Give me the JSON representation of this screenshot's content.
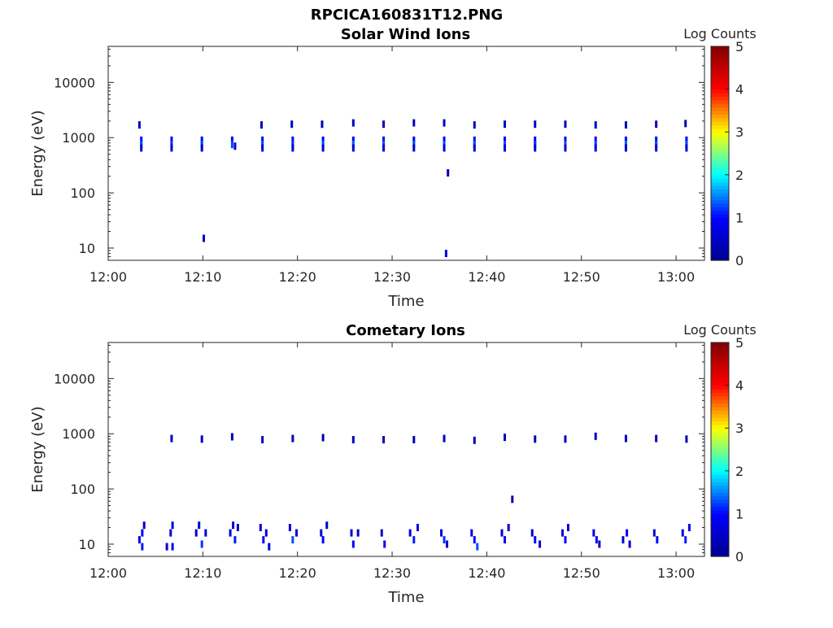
{
  "figure": {
    "title": "RPCICA160831T12.PNG"
  },
  "colormap": {
    "name": "jet",
    "stops": [
      "#00008f",
      "#0000ff",
      "#00ffff",
      "#ffff00",
      "#ff0000",
      "#800000"
    ]
  },
  "chart_data": [
    {
      "type": "heatmap",
      "title": "Solar Wind Ions",
      "xlabel": "Time",
      "ylabel": "Energy (eV)",
      "x_ticks": [
        "12:00",
        "12:10",
        "12:20",
        "12:30",
        "12:40",
        "12:50",
        "13:00"
      ],
      "x_range_minutes": [
        0,
        63
      ],
      "y_scale": "log",
      "y_ticks": [
        "10",
        "100",
        "1000",
        "10000"
      ],
      "y_range": [
        6,
        45000
      ],
      "colorbar": {
        "label": "Log Counts",
        "ticks": [
          "0",
          "1",
          "2",
          "3",
          "4",
          "5"
        ],
        "range": [
          0,
          5
        ]
      },
      "grid": false,
      "cells": [
        {
          "t": 3.3,
          "e": 1700,
          "v": 0.4
        },
        {
          "t": 3.5,
          "e": 900,
          "v": 1.0
        },
        {
          "t": 3.5,
          "e": 750,
          "v": 1.3
        },
        {
          "t": 3.5,
          "e": 650,
          "v": 0.6
        },
        {
          "t": 6.7,
          "e": 900,
          "v": 0.9
        },
        {
          "t": 6.7,
          "e": 750,
          "v": 1.2
        },
        {
          "t": 6.7,
          "e": 650,
          "v": 0.6
        },
        {
          "t": 9.9,
          "e": 900,
          "v": 0.9
        },
        {
          "t": 9.9,
          "e": 750,
          "v": 1.3
        },
        {
          "t": 9.9,
          "e": 650,
          "v": 0.5
        },
        {
          "t": 10.1,
          "e": 15,
          "v": 0.5
        },
        {
          "t": 13.1,
          "e": 900,
          "v": 0.9
        },
        {
          "t": 13.1,
          "e": 750,
          "v": 1.3
        },
        {
          "t": 13.4,
          "e": 700,
          "v": 0.6
        },
        {
          "t": 16.2,
          "e": 1700,
          "v": 0.4
        },
        {
          "t": 16.3,
          "e": 900,
          "v": 0.9
        },
        {
          "t": 16.3,
          "e": 750,
          "v": 1.3
        },
        {
          "t": 16.3,
          "e": 650,
          "v": 0.6
        },
        {
          "t": 19.4,
          "e": 1750,
          "v": 0.5
        },
        {
          "t": 19.5,
          "e": 900,
          "v": 0.9
        },
        {
          "t": 19.5,
          "e": 750,
          "v": 1.2
        },
        {
          "t": 19.5,
          "e": 650,
          "v": 0.6
        },
        {
          "t": 22.6,
          "e": 1750,
          "v": 0.4
        },
        {
          "t": 22.7,
          "e": 900,
          "v": 0.9
        },
        {
          "t": 22.7,
          "e": 750,
          "v": 1.3
        },
        {
          "t": 22.7,
          "e": 650,
          "v": 0.6
        },
        {
          "t": 25.9,
          "e": 1850,
          "v": 0.5
        },
        {
          "t": 25.9,
          "e": 900,
          "v": 1.0
        },
        {
          "t": 25.9,
          "e": 750,
          "v": 1.4
        },
        {
          "t": 25.9,
          "e": 650,
          "v": 0.6
        },
        {
          "t": 29.1,
          "e": 1750,
          "v": 0.4
        },
        {
          "t": 29.1,
          "e": 900,
          "v": 0.9
        },
        {
          "t": 29.1,
          "e": 750,
          "v": 1.3
        },
        {
          "t": 29.1,
          "e": 650,
          "v": 0.6
        },
        {
          "t": 32.3,
          "e": 1850,
          "v": 0.5
        },
        {
          "t": 32.3,
          "e": 900,
          "v": 0.9
        },
        {
          "t": 32.3,
          "e": 750,
          "v": 1.3
        },
        {
          "t": 32.3,
          "e": 650,
          "v": 0.6
        },
        {
          "t": 35.5,
          "e": 1850,
          "v": 0.5
        },
        {
          "t": 35.5,
          "e": 900,
          "v": 1.0
        },
        {
          "t": 35.5,
          "e": 750,
          "v": 1.3
        },
        {
          "t": 35.5,
          "e": 650,
          "v": 0.6
        },
        {
          "t": 35.9,
          "e": 230,
          "v": 0.3
        },
        {
          "t": 35.7,
          "e": 8,
          "v": 0.8
        },
        {
          "t": 38.7,
          "e": 1700,
          "v": 0.4
        },
        {
          "t": 38.7,
          "e": 900,
          "v": 0.9
        },
        {
          "t": 38.7,
          "e": 750,
          "v": 1.3
        },
        {
          "t": 38.7,
          "e": 650,
          "v": 0.6
        },
        {
          "t": 41.9,
          "e": 1750,
          "v": 0.4
        },
        {
          "t": 41.9,
          "e": 900,
          "v": 0.9
        },
        {
          "t": 41.9,
          "e": 750,
          "v": 1.3
        },
        {
          "t": 41.9,
          "e": 650,
          "v": 0.6
        },
        {
          "t": 45.1,
          "e": 1750,
          "v": 0.4
        },
        {
          "t": 45.1,
          "e": 900,
          "v": 0.9
        },
        {
          "t": 45.1,
          "e": 750,
          "v": 1.2
        },
        {
          "t": 45.1,
          "e": 650,
          "v": 0.6
        },
        {
          "t": 48.3,
          "e": 1750,
          "v": 0.4
        },
        {
          "t": 48.3,
          "e": 900,
          "v": 0.9
        },
        {
          "t": 48.3,
          "e": 750,
          "v": 1.3
        },
        {
          "t": 48.3,
          "e": 650,
          "v": 0.6
        },
        {
          "t": 51.5,
          "e": 1700,
          "v": 0.4
        },
        {
          "t": 51.5,
          "e": 900,
          "v": 0.9
        },
        {
          "t": 51.5,
          "e": 750,
          "v": 1.3
        },
        {
          "t": 51.5,
          "e": 650,
          "v": 0.6
        },
        {
          "t": 54.7,
          "e": 1700,
          "v": 0.4
        },
        {
          "t": 54.7,
          "e": 900,
          "v": 1.0
        },
        {
          "t": 54.7,
          "e": 750,
          "v": 1.4
        },
        {
          "t": 54.7,
          "e": 650,
          "v": 0.6
        },
        {
          "t": 57.9,
          "e": 1750,
          "v": 0.4
        },
        {
          "t": 57.9,
          "e": 900,
          "v": 0.9
        },
        {
          "t": 57.9,
          "e": 750,
          "v": 1.3
        },
        {
          "t": 57.9,
          "e": 650,
          "v": 0.6
        },
        {
          "t": 61.0,
          "e": 1800,
          "v": 0.3
        },
        {
          "t": 61.1,
          "e": 900,
          "v": 0.9
        },
        {
          "t": 61.1,
          "e": 750,
          "v": 1.3
        },
        {
          "t": 61.1,
          "e": 650,
          "v": 0.6
        }
      ]
    },
    {
      "type": "heatmap",
      "title": "Cometary Ions",
      "xlabel": "Time",
      "ylabel": "Energy (eV)",
      "x_ticks": [
        "12:00",
        "12:10",
        "12:20",
        "12:30",
        "12:40",
        "12:50",
        "13:00"
      ],
      "x_range_minutes": [
        0,
        63
      ],
      "y_scale": "log",
      "y_ticks": [
        "10",
        "100",
        "1000",
        "10000"
      ],
      "y_range": [
        6,
        45000
      ],
      "colorbar": {
        "label": "Log Counts",
        "ticks": [
          "0",
          "1",
          "2",
          "3",
          "4",
          "5"
        ],
        "range": [
          0,
          5
        ]
      },
      "grid": false,
      "cells": [
        {
          "t": 6.7,
          "e": 820,
          "v": 0.5
        },
        {
          "t": 9.9,
          "e": 800,
          "v": 0.4
        },
        {
          "t": 13.1,
          "e": 880,
          "v": 0.3
        },
        {
          "t": 16.3,
          "e": 780,
          "v": 0.4
        },
        {
          "t": 19.5,
          "e": 820,
          "v": 0.3
        },
        {
          "t": 22.7,
          "e": 850,
          "v": 0.3
        },
        {
          "t": 25.9,
          "e": 780,
          "v": 0.3
        },
        {
          "t": 29.1,
          "e": 780,
          "v": 0.3
        },
        {
          "t": 32.3,
          "e": 780,
          "v": 0.4
        },
        {
          "t": 35.5,
          "e": 820,
          "v": 0.5
        },
        {
          "t": 38.7,
          "e": 760,
          "v": 0.3
        },
        {
          "t": 41.9,
          "e": 860,
          "v": 0.4
        },
        {
          "t": 45.1,
          "e": 800,
          "v": 0.3
        },
        {
          "t": 48.3,
          "e": 800,
          "v": 0.4
        },
        {
          "t": 51.5,
          "e": 900,
          "v": 0.3
        },
        {
          "t": 54.7,
          "e": 820,
          "v": 0.4
        },
        {
          "t": 57.9,
          "e": 820,
          "v": 0.3
        },
        {
          "t": 61.1,
          "e": 800,
          "v": 0.3
        },
        {
          "t": 42.7,
          "e": 65,
          "v": 0.3
        },
        {
          "t": 3.3,
          "e": 12,
          "v": 0.7
        },
        {
          "t": 3.6,
          "e": 16,
          "v": 0.9
        },
        {
          "t": 3.6,
          "e": 9,
          "v": 1.1
        },
        {
          "t": 3.8,
          "e": 22,
          "v": 0.6
        },
        {
          "t": 6.2,
          "e": 9,
          "v": 0.6
        },
        {
          "t": 6.6,
          "e": 16,
          "v": 0.7
        },
        {
          "t": 6.8,
          "e": 22,
          "v": 0.5
        },
        {
          "t": 6.8,
          "e": 9,
          "v": 1.0
        },
        {
          "t": 9.3,
          "e": 16,
          "v": 0.6
        },
        {
          "t": 9.6,
          "e": 22,
          "v": 0.5
        },
        {
          "t": 9.9,
          "e": 10,
          "v": 1.2
        },
        {
          "t": 10.3,
          "e": 16,
          "v": 0.7
        },
        {
          "t": 12.9,
          "e": 16,
          "v": 0.7
        },
        {
          "t": 13.2,
          "e": 22,
          "v": 0.6
        },
        {
          "t": 13.4,
          "e": 12,
          "v": 1.1
        },
        {
          "t": 13.7,
          "e": 20,
          "v": 0.5
        },
        {
          "t": 16.1,
          "e": 20,
          "v": 0.6
        },
        {
          "t": 16.4,
          "e": 12,
          "v": 1.0
        },
        {
          "t": 16.7,
          "e": 16,
          "v": 0.7
        },
        {
          "t": 17.0,
          "e": 9,
          "v": 0.5
        },
        {
          "t": 19.2,
          "e": 20,
          "v": 0.6
        },
        {
          "t": 19.5,
          "e": 12,
          "v": 1.3
        },
        {
          "t": 19.9,
          "e": 16,
          "v": 0.6
        },
        {
          "t": 22.5,
          "e": 16,
          "v": 0.7
        },
        {
          "t": 22.7,
          "e": 12,
          "v": 1.0
        },
        {
          "t": 23.1,
          "e": 22,
          "v": 0.5
        },
        {
          "t": 25.7,
          "e": 16,
          "v": 0.7
        },
        {
          "t": 25.9,
          "e": 10,
          "v": 1.0
        },
        {
          "t": 26.4,
          "e": 16,
          "v": 0.6
        },
        {
          "t": 28.9,
          "e": 16,
          "v": 0.7
        },
        {
          "t": 29.2,
          "e": 10,
          "v": 0.9
        },
        {
          "t": 31.9,
          "e": 16,
          "v": 0.8
        },
        {
          "t": 32.3,
          "e": 12,
          "v": 1.1
        },
        {
          "t": 32.7,
          "e": 20,
          "v": 0.7
        },
        {
          "t": 35.2,
          "e": 16,
          "v": 0.7
        },
        {
          "t": 35.5,
          "e": 12,
          "v": 1.2
        },
        {
          "t": 35.8,
          "e": 10,
          "v": 0.6
        },
        {
          "t": 38.4,
          "e": 16,
          "v": 0.8
        },
        {
          "t": 38.7,
          "e": 12,
          "v": 1.0
        },
        {
          "t": 39.0,
          "e": 9,
          "v": 1.3
        },
        {
          "t": 41.6,
          "e": 16,
          "v": 0.8
        },
        {
          "t": 41.9,
          "e": 12,
          "v": 1.0
        },
        {
          "t": 42.3,
          "e": 20,
          "v": 0.6
        },
        {
          "t": 44.8,
          "e": 16,
          "v": 0.7
        },
        {
          "t": 45.1,
          "e": 12,
          "v": 1.0
        },
        {
          "t": 45.6,
          "e": 10,
          "v": 0.6
        },
        {
          "t": 48.0,
          "e": 16,
          "v": 0.7
        },
        {
          "t": 48.3,
          "e": 12,
          "v": 1.0
        },
        {
          "t": 48.6,
          "e": 20,
          "v": 0.6
        },
        {
          "t": 51.3,
          "e": 16,
          "v": 0.7
        },
        {
          "t": 51.6,
          "e": 12,
          "v": 1.0
        },
        {
          "t": 51.9,
          "e": 10,
          "v": 0.6
        },
        {
          "t": 54.4,
          "e": 12,
          "v": 0.7
        },
        {
          "t": 54.8,
          "e": 16,
          "v": 1.0
        },
        {
          "t": 55.1,
          "e": 10,
          "v": 0.6
        },
        {
          "t": 57.7,
          "e": 16,
          "v": 0.7
        },
        {
          "t": 58.0,
          "e": 12,
          "v": 1.0
        },
        {
          "t": 60.7,
          "e": 16,
          "v": 0.7
        },
        {
          "t": 61.0,
          "e": 12,
          "v": 1.1
        },
        {
          "t": 61.4,
          "e": 20,
          "v": 0.8
        }
      ]
    }
  ]
}
